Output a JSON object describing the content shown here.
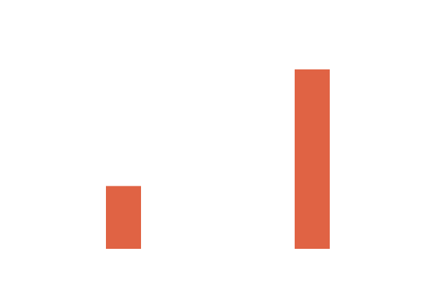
{
  "chart_data": {
    "type": "bar",
    "categories": [
      null,
      null
    ],
    "values": [
      35,
      100
    ],
    "color": "#e06344",
    "ylim": [
      0,
      100
    ]
  }
}
